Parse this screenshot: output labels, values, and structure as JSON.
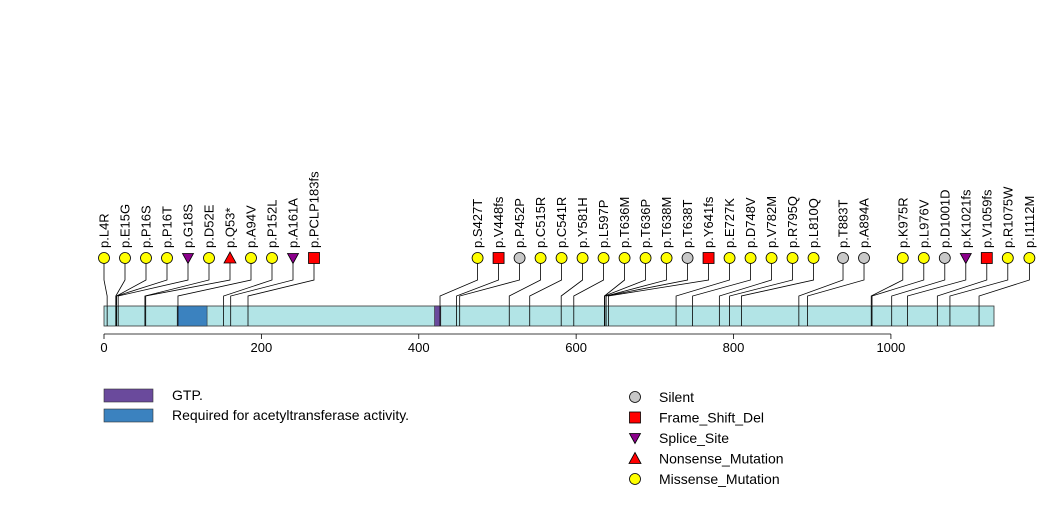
{
  "chart_data": {
    "type": "lollipop",
    "protein_length": 1131,
    "xlim": [
      0,
      1131
    ],
    "x_ticks": [
      0,
      200,
      400,
      600,
      800,
      1000
    ],
    "colors": {
      "backbone": "#b2e4e6",
      "stem": "#000000",
      "Missense_Mutation": "#ffff00",
      "Nonsense_Mutation": "#ff0000",
      "Splice_Site": "#8b008b",
      "Frame_Shift_Del": "#ff0000",
      "Silent": "#c8c8c8",
      "GTP.": "#6a4a9c",
      "Required for acetyltransferase activity.": "#3b82bf"
    },
    "domains": [
      {
        "name": "GTP.",
        "start": 420,
        "end": 428
      },
      {
        "name": "Required for acetyltransferase activity.",
        "start": 93,
        "end": 131
      }
    ],
    "mutations": [
      {
        "label": "p.L4R",
        "pos": 4,
        "type": "Missense_Mutation"
      },
      {
        "label": "p.E15G",
        "pos": 15,
        "type": "Missense_Mutation"
      },
      {
        "label": "p.P16S",
        "pos": 16,
        "type": "Missense_Mutation"
      },
      {
        "label": "p.P16T",
        "pos": 16,
        "type": "Missense_Mutation"
      },
      {
        "label": "p.G18S",
        "pos": 18,
        "type": "Splice_Site"
      },
      {
        "label": "p.D52E",
        "pos": 52,
        "type": "Missense_Mutation"
      },
      {
        "label": "p.Q53*",
        "pos": 53,
        "type": "Nonsense_Mutation"
      },
      {
        "label": "p.A94V",
        "pos": 94,
        "type": "Missense_Mutation"
      },
      {
        "label": "p.P152L",
        "pos": 152,
        "type": "Missense_Mutation"
      },
      {
        "label": "p.A161A",
        "pos": 161,
        "type": "Splice_Site"
      },
      {
        "label": "p.PCLP183fs",
        "pos": 183,
        "type": "Frame_Shift_Del"
      },
      {
        "label": "p.S427T",
        "pos": 427,
        "type": "Missense_Mutation"
      },
      {
        "label": "p.V448fs",
        "pos": 448,
        "type": "Frame_Shift_Del"
      },
      {
        "label": "p.P452P",
        "pos": 452,
        "type": "Silent"
      },
      {
        "label": "p.C515R",
        "pos": 515,
        "type": "Missense_Mutation"
      },
      {
        "label": "p.C541R",
        "pos": 541,
        "type": "Missense_Mutation"
      },
      {
        "label": "p.Y581H",
        "pos": 581,
        "type": "Missense_Mutation"
      },
      {
        "label": "p.L597P",
        "pos": 597,
        "type": "Missense_Mutation"
      },
      {
        "label": "p.T636M",
        "pos": 636,
        "type": "Missense_Mutation"
      },
      {
        "label": "p.T636P",
        "pos": 636,
        "type": "Missense_Mutation"
      },
      {
        "label": "p.T638M",
        "pos": 638,
        "type": "Missense_Mutation"
      },
      {
        "label": "p.T638T",
        "pos": 638,
        "type": "Silent"
      },
      {
        "label": "p.Y641fs",
        "pos": 641,
        "type": "Frame_Shift_Del"
      },
      {
        "label": "p.E727K",
        "pos": 727,
        "type": "Missense_Mutation"
      },
      {
        "label": "p.D748V",
        "pos": 748,
        "type": "Missense_Mutation"
      },
      {
        "label": "p.V782M",
        "pos": 782,
        "type": "Missense_Mutation"
      },
      {
        "label": "p.R795Q",
        "pos": 795,
        "type": "Missense_Mutation"
      },
      {
        "label": "p.L810Q",
        "pos": 810,
        "type": "Missense_Mutation"
      },
      {
        "label": "p.T883T",
        "pos": 883,
        "type": "Silent"
      },
      {
        "label": "p.A894A",
        "pos": 894,
        "type": "Silent"
      },
      {
        "label": "p.K975R",
        "pos": 975,
        "type": "Missense_Mutation"
      },
      {
        "label": "p.L976V",
        "pos": 976,
        "type": "Missense_Mutation"
      },
      {
        "label": "p.D1001D",
        "pos": 1001,
        "type": "Silent"
      },
      {
        "label": "p.K1021fs",
        "pos": 1021,
        "type": "Splice_Site"
      },
      {
        "label": "p.V1059fs",
        "pos": 1059,
        "type": "Frame_Shift_Del"
      },
      {
        "label": "p.R1075W",
        "pos": 1075,
        "type": "Missense_Mutation"
      },
      {
        "label": "p.I1112M",
        "pos": 1112,
        "type": "Missense_Mutation"
      }
    ],
    "legend_domains": [
      {
        "label": "GTP.",
        "color": "#6a4a9c"
      },
      {
        "label": "Required for acetyltransferase activity.",
        "color": "#3b82bf"
      }
    ],
    "legend_types": [
      {
        "label": "Silent",
        "type": "Silent"
      },
      {
        "label": "Frame_Shift_Del",
        "type": "Frame_Shift_Del"
      },
      {
        "label": "Splice_Site",
        "type": "Splice_Site"
      },
      {
        "label": "Nonsense_Mutation",
        "type": "Nonsense_Mutation"
      },
      {
        "label": "Missense_Mutation",
        "type": "Missense_Mutation"
      }
    ]
  }
}
